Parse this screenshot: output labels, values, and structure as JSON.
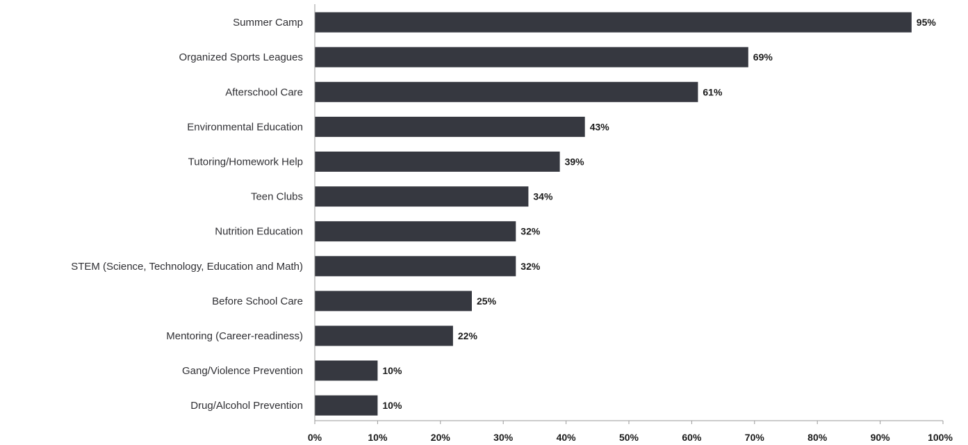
{
  "chart_data": {
    "type": "bar",
    "orientation": "horizontal",
    "title": "",
    "xlabel": "",
    "ylabel": "",
    "categories": [
      "Summer Camp",
      "Organized Sports Leagues",
      "Afterschool Care",
      "Environmental Education",
      "Tutoring/Homework Help",
      "Teen Clubs",
      "Nutrition Education",
      "STEM (Science, Technology, Education and Math)",
      "Before School Care",
      "Mentoring (Career-readiness)",
      "Gang/Violence Prevention",
      "Drug/Alcohol Prevention"
    ],
    "values": [
      95,
      69,
      61,
      43,
      39,
      34,
      32,
      32,
      25,
      22,
      10,
      10
    ],
    "value_labels": [
      "95%",
      "69%",
      "61%",
      "43%",
      "39%",
      "34%",
      "32%",
      "32%",
      "25%",
      "22%",
      "10%",
      "10%"
    ],
    "xlim": [
      0,
      100
    ],
    "xticks": [
      0,
      10,
      20,
      30,
      40,
      50,
      60,
      70,
      80,
      90,
      100
    ],
    "xtick_labels": [
      "0%",
      "10%",
      "20%",
      "30%",
      "40%",
      "50%",
      "60%",
      "70%",
      "80%",
      "90%",
      "100%"
    ],
    "grid": false,
    "legend": "none",
    "bar_color": "#363840"
  }
}
